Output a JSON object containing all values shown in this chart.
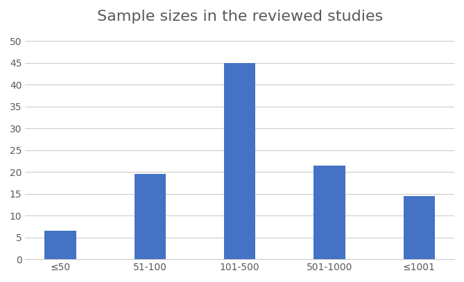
{
  "title": "Sample sizes in the reviewed studies",
  "categories": [
    "≤50",
    "51-100",
    "101-500",
    "501-1000",
    "≤1001"
  ],
  "values": [
    6.5,
    19.5,
    45,
    21.5,
    14.5
  ],
  "bar_color": "#4472C4",
  "ylim": [
    0,
    52
  ],
  "yticks": [
    0,
    5,
    10,
    15,
    20,
    25,
    30,
    35,
    40,
    45,
    50
  ],
  "title_fontsize": 16,
  "title_color": "#595959",
  "tick_fontsize": 10,
  "tick_color": "#595959",
  "background_color": "#FFFFFF",
  "grid_color": "#CCCCCC",
  "bar_width": 0.35
}
